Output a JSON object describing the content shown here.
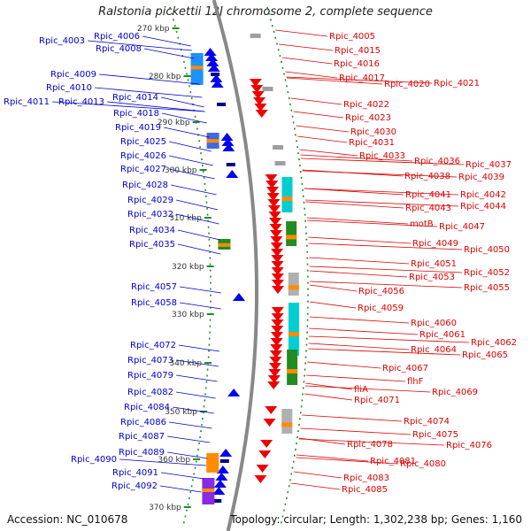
{
  "title": "Ralstonia pickettii 12J chromosome 2, complete sequence",
  "footer": {
    "accession": "Accession: NC_010678",
    "topology": "Topology: circular; Length: 1,302,238 bp; Genes: 1,160"
  },
  "scale_labels": [
    "270 kbp",
    "280 kbp",
    "290 kbp",
    "300 kbp",
    "310 kbp",
    "320 kbp",
    "330 kbp",
    "340 kbp",
    "350 kbp",
    "360 kbp",
    "370 kbp"
  ],
  "left_labels": [
    "Rpic_4003",
    "Rpic_4006",
    "Rpic_4008",
    "Rpic_4009",
    "Rpic_4010",
    "Rpic_4011",
    "Rpic_4013",
    "Rpic_4014",
    "Rpic_4018",
    "Rpic_4019",
    "Rpic_4025",
    "Rpic_4026",
    "Rpic_4027",
    "Rpic_4028",
    "Rpic_4029",
    "Rpic_4032",
    "Rpic_4034",
    "Rpic_4035",
    "Rpic_4057",
    "Rpic_4058",
    "Rpic_4072",
    "Rpic_4073",
    "Rpic_4079",
    "Rpic_4082",
    "Rpic_4084",
    "Rpic_4086",
    "Rpic_4087",
    "Rpic_4089",
    "Rpic_4090",
    "Rpic_4091",
    "Rpic_4092"
  ],
  "right_labels": [
    "Rpic_4005",
    "Rpic_4015",
    "Rpic_4016",
    "Rpic_4017",
    "Rpic_4020",
    "Rpic_4021",
    "Rpic_4022",
    "Rpic_4023",
    "Rpic_4030",
    "Rpic_4031",
    "Rpic_4033",
    "Rpic_4036",
    "Rpic_4037",
    "Rpic_4038",
    "Rpic_4039",
    "Rpic_4041",
    "Rpic_4042",
    "Rpic_4043",
    "Rpic_4044",
    "motB",
    "Rpic_4047",
    "Rpic_4049",
    "Rpic_4050",
    "Rpic_4051",
    "Rpic_4052",
    "Rpic_4053",
    "Rpic_4056",
    "Rpic_4055",
    "Rpic_4059",
    "Rpic_4060",
    "Rpic_4061",
    "Rpic_4062",
    "Rpic_4064",
    "Rpic_4065",
    "Rpic_4067",
    "flhF",
    "fliA",
    "Rpic_4069",
    "Rpic_4071",
    "Rpic_4074",
    "Rpic_4075",
    "Rpic_4076",
    "Rpic_4078",
    "Rpic_4081",
    "Rpic_4080",
    "Rpic_4083",
    "Rpic_4085"
  ],
  "colors": {
    "minus_strand_label": "#0000cc",
    "plus_strand_label": "#dd0000",
    "minus_gene": "#0000ee",
    "plus_gene": "#ee0000",
    "backbone": "#888888",
    "tick": "#228b22"
  }
}
